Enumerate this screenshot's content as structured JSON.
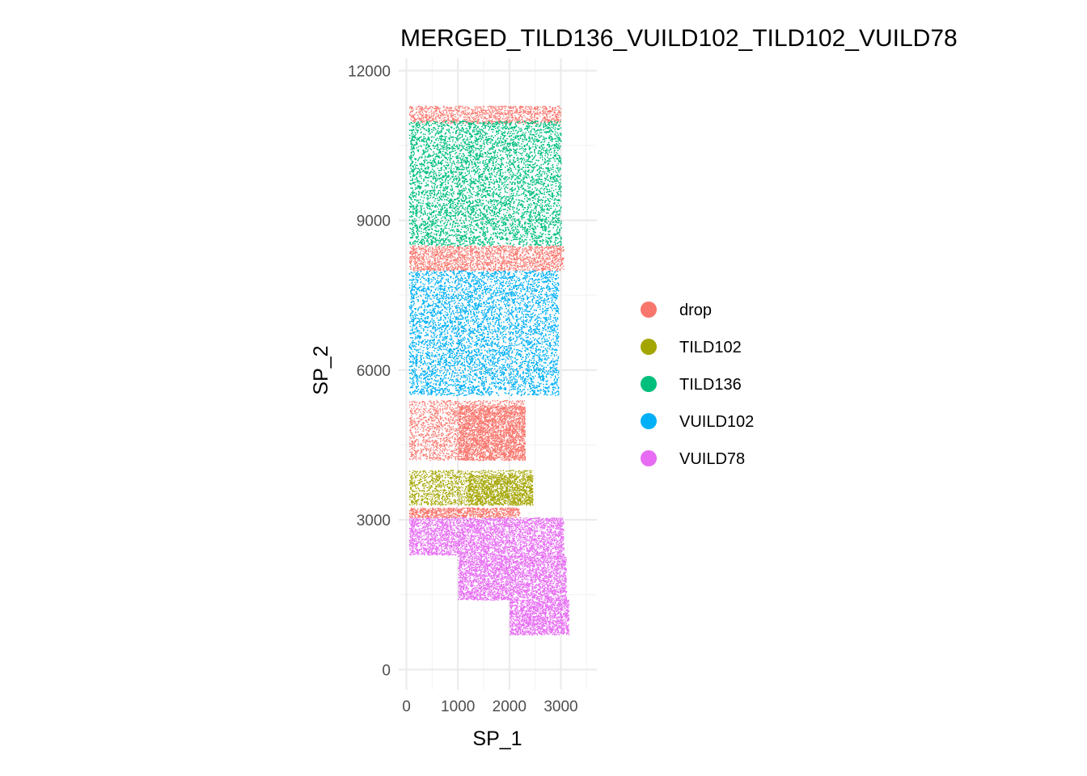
{
  "chart_data": {
    "type": "scatter",
    "title": "MERGED_TILD136_VUILD102_TILD102_VUILD78",
    "xlabel": "SP_1",
    "ylabel": "SP_2",
    "xlim": [
      -150,
      3700
    ],
    "ylim": [
      -400,
      12250
    ],
    "x_ticks": [
      0,
      1000,
      2000,
      3000
    ],
    "x_tick_labels": [
      "0",
      "1000",
      "2000",
      "3000"
    ],
    "y_ticks": [
      0,
      3000,
      6000,
      9000,
      12000
    ],
    "y_tick_labels": [
      "0",
      "3000",
      "6000",
      "9000",
      "12000"
    ],
    "grid": true,
    "legend_position": "right",
    "series": [
      {
        "name": "drop",
        "color": "#F8766D",
        "regions": [
          {
            "x": [
              50,
              3000
            ],
            "y": [
              10950,
              11300
            ],
            "density": 0.35
          },
          {
            "x": [
              50,
              3050
            ],
            "y": [
              8000,
              8500
            ],
            "density": 0.4
          },
          {
            "x": [
              50,
              2300
            ],
            "y": [
              4200,
              5400
            ],
            "density": 0.25
          },
          {
            "x": [
              1000,
              2300
            ],
            "y": [
              4200,
              5300
            ],
            "density": 0.45
          },
          {
            "x": [
              50,
              2200
            ],
            "y": [
              3050,
              3250
            ],
            "density": 0.6
          }
        ]
      },
      {
        "name": "TILD102",
        "color": "#A3A500",
        "regions": [
          {
            "x": [
              50,
              2450
            ],
            "y": [
              3300,
              4000
            ],
            "density": 0.3
          },
          {
            "x": [
              1200,
              2450
            ],
            "y": [
              3300,
              3900
            ],
            "density": 0.35
          }
        ]
      },
      {
        "name": "TILD136",
        "color": "#00BF7D",
        "regions": [
          {
            "x": [
              50,
              3000
            ],
            "y": [
              8500,
              11000
            ],
            "density": 0.55
          }
        ]
      },
      {
        "name": "VUILD102",
        "color": "#00B0F6",
        "regions": [
          {
            "x": [
              50,
              2950
            ],
            "y": [
              5500,
              8000
            ],
            "density": 0.5
          }
        ]
      },
      {
        "name": "VUILD78",
        "color": "#E76BF3",
        "regions": [
          {
            "x": [
              50,
              3050
            ],
            "y": [
              2300,
              3050
            ],
            "density": 0.5
          },
          {
            "x": [
              1000,
              3100
            ],
            "y": [
              1400,
              2300
            ],
            "density": 0.55
          },
          {
            "x": [
              2000,
              3150
            ],
            "y": [
              700,
              1400
            ],
            "density": 0.6
          }
        ]
      }
    ]
  }
}
